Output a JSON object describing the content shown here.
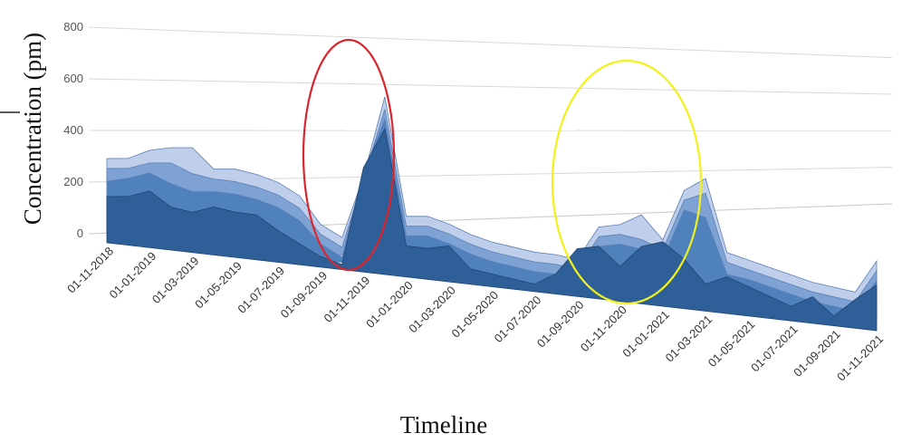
{
  "chart_data": {
    "type": "area",
    "title": "",
    "xlabel": "Timeline",
    "ylabel": "Concentration (pm)",
    "ylim": [
      0,
      800
    ],
    "yticks": [
      "0",
      "200",
      "400",
      "600",
      "800"
    ],
    "x": [
      "01-11-2018",
      "01-12-2018",
      "01-01-2019",
      "01-02-2019",
      "01-03-2019",
      "01-04-2019",
      "01-05-2019",
      "01-06-2019",
      "01-07-2019",
      "01-08-2019",
      "01-09-2019",
      "01-10-2019",
      "01-11-2019",
      "01-12-2019",
      "01-01-2020",
      "01-02-2020",
      "01-03-2020",
      "01-04-2020",
      "01-05-2020",
      "01-06-2020",
      "01-07-2020",
      "01-08-2020",
      "01-09-2020",
      "01-10-2020",
      "01-11-2020",
      "01-12-2020",
      "01-01-2021",
      "01-02-2021",
      "01-03-2021",
      "01-04-2021",
      "01-05-2021",
      "01-06-2021",
      "01-07-2021",
      "01-08-2021",
      "01-09-2021",
      "01-10-2021",
      "01-11-2021"
    ],
    "xtick_labels": [
      "01-11-2018",
      "01-01-2019",
      "01-03-2019",
      "01-05-2019",
      "01-07-2019",
      "01-09-2019",
      "01-11-2019",
      "01-01-2020",
      "01-03-2020",
      "01-05-2020",
      "01-07-2020",
      "01-09-2020",
      "01-11-2020",
      "01-01-2021",
      "01-03-2021",
      "01-05-2021",
      "01-07-2021",
      "01-09-2021",
      "01-11-2021"
    ],
    "series": [
      {
        "values": [
          230,
          240,
          280,
          300,
          310,
          240,
          250,
          240,
          220,
          180,
          80,
          40,
          280,
          600,
          150,
          160,
          140,
          110,
          90,
          80,
          70,
          70,
          60,
          200,
          220,
          270,
          180,
          390,
          450,
          160,
          140,
          120,
          100,
          80,
          70,
          60,
          200
        ]
      },
      {
        "values": [
          220,
          230,
          260,
          270,
          240,
          230,
          230,
          220,
          200,
          160,
          70,
          30,
          300,
          580,
          140,
          150,
          130,
          100,
          80,
          70,
          60,
          60,
          50,
          190,
          210,
          200,
          170,
          380,
          420,
          150,
          130,
          110,
          90,
          70,
          60,
          50,
          190
        ]
      },
      {
        "values": [
          200,
          220,
          250,
          220,
          200,
          210,
          210,
          200,
          180,
          140,
          60,
          20,
          350,
          570,
          130,
          140,
          120,
          90,
          70,
          60,
          50,
          50,
          40,
          180,
          200,
          190,
          160,
          370,
          350,
          130,
          120,
          100,
          80,
          60,
          50,
          40,
          180
        ]
      },
      {
        "values": [
          170,
          180,
          210,
          160,
          150,
          180,
          170,
          170,
          120,
          80,
          40,
          20,
          400,
          560,
          120,
          120,
          140,
          60,
          50,
          40,
          30,
          80,
          190,
          210,
          140,
          230,
          260,
          200,
          110,
          150,
          120,
          90,
          60,
          110,
          40,
          120,
          190
        ]
      }
    ],
    "annotations": [
      {
        "shape": "ellipse",
        "color": "#d9262f",
        "around": "01-10-2019 to 01-12-2019 peak"
      },
      {
        "shape": "ellipse",
        "color": "#f2f21a",
        "around": "01-10-2020 to 01-03-2021 peak"
      }
    ],
    "colors": [
      "#b4c7e7",
      "#7ea2d4",
      "#4f81bd",
      "#2f5f98"
    ]
  }
}
